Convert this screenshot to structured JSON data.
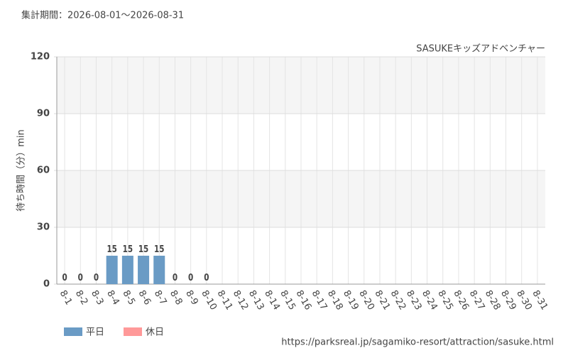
{
  "chart_data": {
    "type": "bar",
    "title": "集計期間：2026-08-01～2026-08-31",
    "subtitle": "SASUKEキッズアドベンチャー",
    "y_label": "待ち時間（分）min",
    "source": "https://parksreal.jp/sagamiko-resort/attraction/sasuke.html",
    "categories": [
      "8-1",
      "8-2",
      "8-3",
      "8-4",
      "8-5",
      "8-6",
      "8-7",
      "8-8",
      "8-9",
      "8-10",
      "8-11",
      "8-12",
      "8-13",
      "8-14",
      "8-15",
      "8-16",
      "8-17",
      "8-18",
      "8-19",
      "8-20",
      "8-21",
      "8-22",
      "8-23",
      "8-24",
      "8-25",
      "8-26",
      "8-27",
      "8-28",
      "8-29",
      "8-30",
      "8-31"
    ],
    "category_label_colors": [
      "#ff8a8a",
      "#ff8a8a",
      "#444444",
      "#444444",
      "#444444",
      "#444444",
      "#444444",
      "#ff8a8a",
      "#ff8a8a",
      "#444444",
      "#ff8a8a",
      "#444444",
      "#444444",
      "#444444",
      "#ff8a8a",
      "#ff8a8a",
      "#444444",
      "#444444",
      "#444444",
      "#444444",
      "#444444",
      "#ff8a8a",
      "#ff8a8a",
      "#444444",
      "#444444",
      "#444444",
      "#444444",
      "#444444",
      "#ff8a8a",
      "#ff8a8a",
      "#444444"
    ],
    "series": [
      {
        "name": "平日",
        "color": "#6a9bc5",
        "values": [
          null,
          null,
          0,
          15,
          15,
          15,
          15,
          null,
          null,
          0,
          null,
          null,
          null,
          null,
          null,
          null,
          null,
          null,
          null,
          null,
          null,
          null,
          null,
          null,
          null,
          null,
          null,
          null,
          null,
          null,
          null
        ]
      },
      {
        "name": "休日",
        "color": "#ff9999",
        "values": [
          0,
          0,
          null,
          null,
          null,
          null,
          null,
          0,
          0,
          null,
          null,
          null,
          null,
          null,
          null,
          null,
          null,
          null,
          null,
          null,
          null,
          null,
          null,
          null,
          null,
          null,
          null,
          null,
          null,
          null,
          null
        ]
      }
    ],
    "ylim": [
      0,
      120
    ],
    "yticks": [
      0,
      30,
      60,
      90,
      120
    ],
    "grid": true
  }
}
